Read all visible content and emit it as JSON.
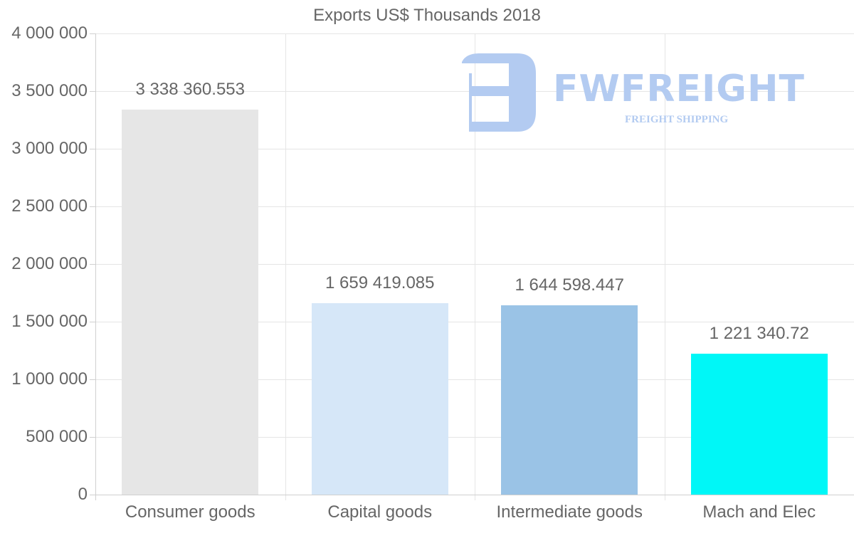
{
  "chart_data": {
    "type": "bar",
    "title": "Exports US$ Thousands 2018",
    "xlabel": "",
    "ylabel": "",
    "categories": [
      "Consumer goods",
      "Capital goods",
      "Intermediate goods",
      "Mach and Elec"
    ],
    "values": [
      3338360.553,
      1659419.085,
      1644598.447,
      1221340.72
    ],
    "value_labels": [
      "3 338 360.553",
      "1 659 419.085",
      "1 644 598.447",
      "1 221 340.72"
    ],
    "colors": [
      "#e6e6e6",
      "#d6e7f8",
      "#9ac3e6",
      "#00f7f7"
    ],
    "ylim": [
      0,
      4000000
    ],
    "yticks": [
      0,
      500000,
      1000000,
      1500000,
      2000000,
      2500000,
      3000000,
      3500000,
      4000000
    ],
    "ytick_labels": [
      "0",
      "500 000",
      "1 000 000",
      "1 500 000",
      "2 000 000",
      "2 500 000",
      "3 000 000",
      "3 500 000",
      "4 000 000"
    ],
    "grid": true,
    "legend": "none"
  },
  "watermark": {
    "brand": "FWFREIGHT",
    "tagline": "FREIGHT SHIPPING",
    "color": "#b3cbf1"
  }
}
